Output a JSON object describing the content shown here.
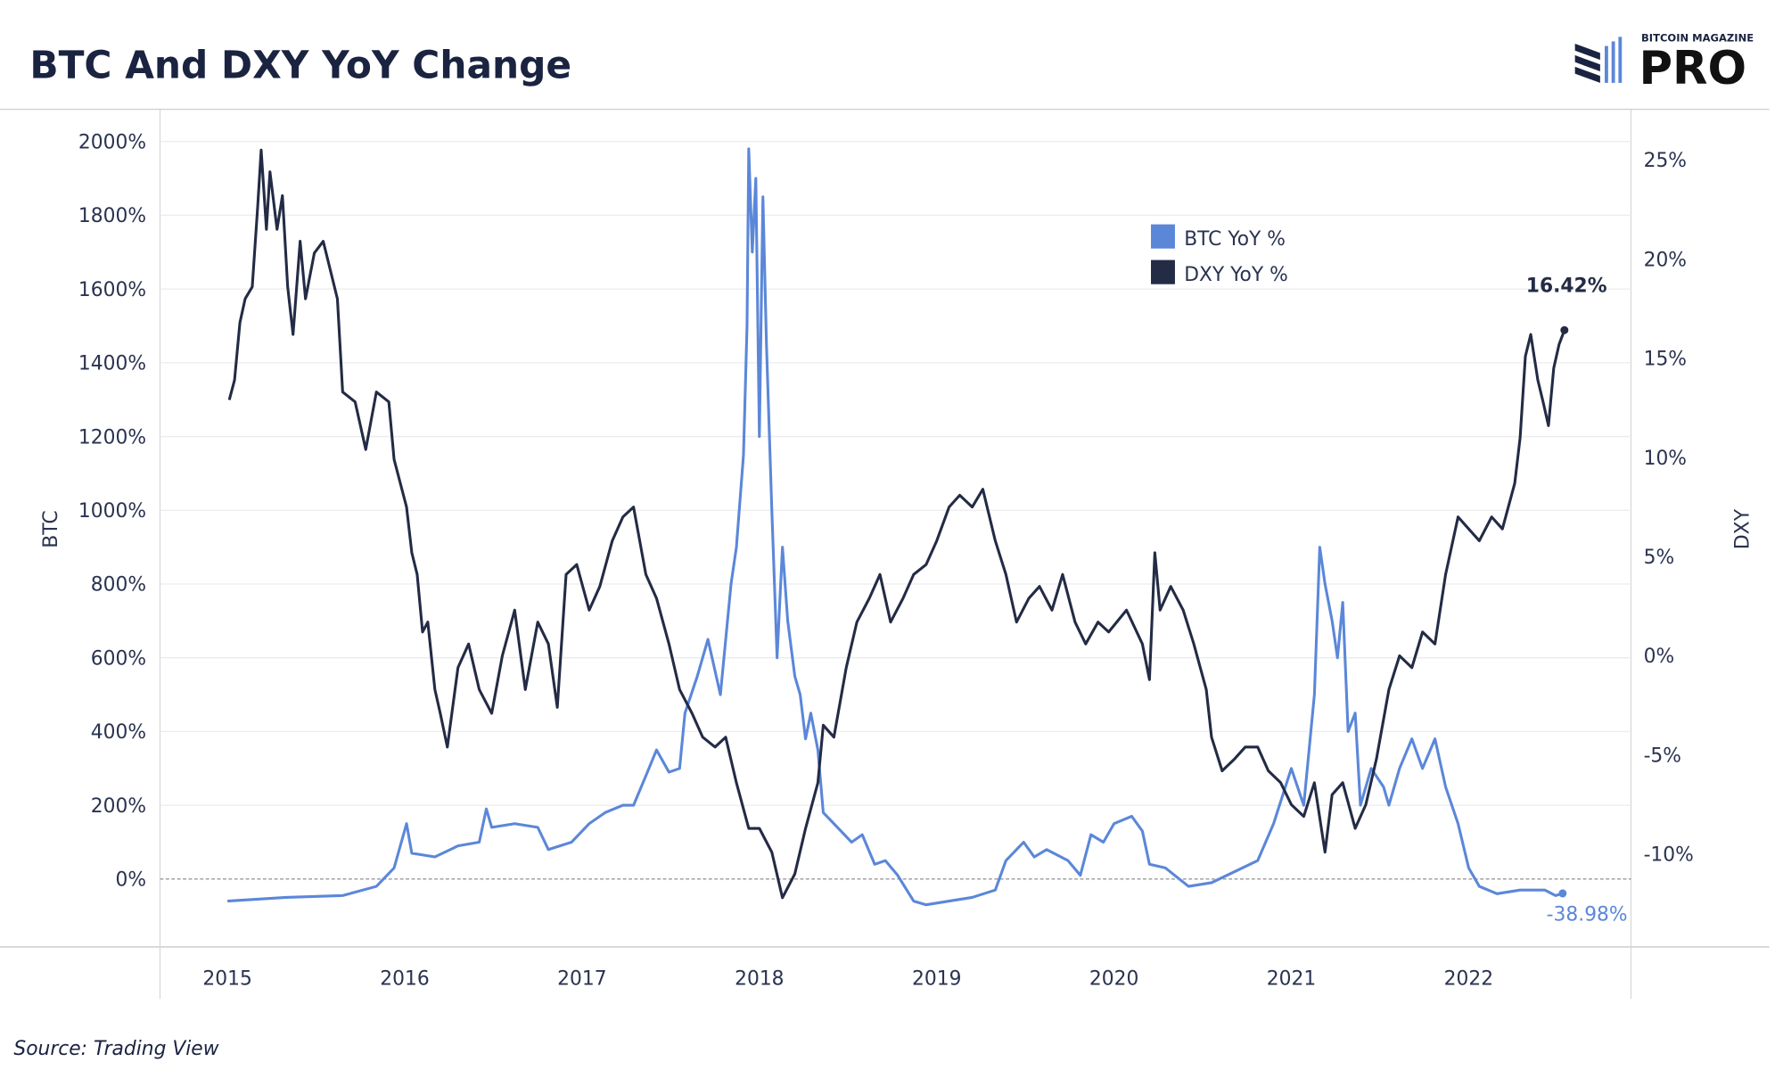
{
  "title": "BTC And DXY YoY Change",
  "source": "Source: Trading View",
  "logo": {
    "top": "BITCOIN MAGAZINE",
    "main": "PRO"
  },
  "colors": {
    "btc": "#5b87d9",
    "dxy": "#232b45",
    "grid": "#ececec",
    "text": "#1a2340"
  },
  "chart_data": {
    "type": "line",
    "title": "BTC And DXY YoY Change",
    "xlabel": "",
    "ylabel_left": "BTC",
    "ylabel_right": "DXY",
    "xlim": [
      2014.62,
      2022.91
    ],
    "ylim_left": [
      -190,
      2100
    ],
    "ylim_right": [
      -14.6,
      25
    ],
    "x_ticks": [
      2015,
      2016,
      2017,
      2018,
      2019,
      2020,
      2021,
      2022
    ],
    "x_tick_labels": [
      "2015",
      "2016",
      "2017",
      "2018",
      "2019",
      "2020",
      "2021",
      "2022"
    ],
    "left_ticks": [
      0,
      200,
      400,
      600,
      800,
      1000,
      1200,
      1400,
      1600,
      1800,
      2000
    ],
    "left_tick_labels": [
      "0%",
      "200%",
      "400%",
      "600%",
      "800%",
      "1000%",
      "1200%",
      "1400%",
      "1600%",
      "1800%",
      "2000%"
    ],
    "right_ticks": [
      -10,
      -5,
      0,
      5,
      10,
      15,
      20,
      25
    ],
    "right_tick_labels": [
      "-10%",
      "-5%",
      "0%",
      "5%",
      "10%",
      "15%",
      "20%",
      "25%"
    ],
    "grid": true,
    "legend_position": "top-right",
    "series": [
      {
        "name": "BTC YoY %",
        "axis": "left",
        "end_label": "-38.98%",
        "points": [
          [
            2015.0,
            -60
          ],
          [
            2015.33,
            -50
          ],
          [
            2015.65,
            -45
          ],
          [
            2015.84,
            -20
          ],
          [
            2015.94,
            30
          ],
          [
            2016.01,
            150
          ],
          [
            2016.04,
            70
          ],
          [
            2016.17,
            60
          ],
          [
            2016.3,
            90
          ],
          [
            2016.42,
            100
          ],
          [
            2016.46,
            190
          ],
          [
            2016.49,
            140
          ],
          [
            2016.62,
            150
          ],
          [
            2016.75,
            140
          ],
          [
            2016.81,
            80
          ],
          [
            2016.94,
            100
          ],
          [
            2017.04,
            150
          ],
          [
            2017.13,
            180
          ],
          [
            2017.23,
            200
          ],
          [
            2017.29,
            200
          ],
          [
            2017.36,
            280
          ],
          [
            2017.42,
            350
          ],
          [
            2017.49,
            290
          ],
          [
            2017.55,
            300
          ],
          [
            2017.58,
            450
          ],
          [
            2017.65,
            550
          ],
          [
            2017.71,
            650
          ],
          [
            2017.78,
            500
          ],
          [
            2017.84,
            800
          ],
          [
            2017.87,
            900
          ],
          [
            2017.91,
            1150
          ],
          [
            2017.93,
            1500
          ],
          [
            2017.94,
            1980
          ],
          [
            2017.96,
            1700
          ],
          [
            2017.98,
            1900
          ],
          [
            2018.0,
            1200
          ],
          [
            2018.02,
            1850
          ],
          [
            2018.04,
            1450
          ],
          [
            2018.07,
            1000
          ],
          [
            2018.1,
            600
          ],
          [
            2018.13,
            900
          ],
          [
            2018.16,
            700
          ],
          [
            2018.2,
            550
          ],
          [
            2018.23,
            500
          ],
          [
            2018.26,
            380
          ],
          [
            2018.29,
            450
          ],
          [
            2018.33,
            350
          ],
          [
            2018.36,
            180
          ],
          [
            2018.42,
            150
          ],
          [
            2018.52,
            100
          ],
          [
            2018.58,
            120
          ],
          [
            2018.65,
            40
          ],
          [
            2018.71,
            50
          ],
          [
            2018.78,
            10
          ],
          [
            2018.87,
            -60
          ],
          [
            2018.94,
            -70
          ],
          [
            2019.07,
            -60
          ],
          [
            2019.2,
            -50
          ],
          [
            2019.33,
            -30
          ],
          [
            2019.39,
            50
          ],
          [
            2019.49,
            100
          ],
          [
            2019.55,
            60
          ],
          [
            2019.62,
            80
          ],
          [
            2019.74,
            50
          ],
          [
            2019.81,
            10
          ],
          [
            2019.87,
            120
          ],
          [
            2019.94,
            100
          ],
          [
            2020.0,
            150
          ],
          [
            2020.1,
            170
          ],
          [
            2020.16,
            130
          ],
          [
            2020.2,
            40
          ],
          [
            2020.29,
            30
          ],
          [
            2020.42,
            -20
          ],
          [
            2020.55,
            -10
          ],
          [
            2020.68,
            20
          ],
          [
            2020.81,
            50
          ],
          [
            2020.9,
            150
          ],
          [
            2021.0,
            300
          ],
          [
            2021.07,
            200
          ],
          [
            2021.13,
            500
          ],
          [
            2021.16,
            900
          ],
          [
            2021.19,
            800
          ],
          [
            2021.23,
            700
          ],
          [
            2021.26,
            600
          ],
          [
            2021.29,
            750
          ],
          [
            2021.32,
            400
          ],
          [
            2021.36,
            450
          ],
          [
            2021.39,
            200
          ],
          [
            2021.45,
            300
          ],
          [
            2021.52,
            250
          ],
          [
            2021.55,
            200
          ],
          [
            2021.61,
            300
          ],
          [
            2021.68,
            380
          ],
          [
            2021.74,
            300
          ],
          [
            2021.81,
            380
          ],
          [
            2021.87,
            250
          ],
          [
            2021.94,
            150
          ],
          [
            2022.0,
            30
          ],
          [
            2022.06,
            -20
          ],
          [
            2022.16,
            -40
          ],
          [
            2022.29,
            -30
          ],
          [
            2022.43,
            -30
          ],
          [
            2022.49,
            -45
          ],
          [
            2022.53,
            -39
          ]
        ]
      },
      {
        "name": "DXY YoY %",
        "axis": "right",
        "end_label": "16.42%",
        "points": [
          [
            2015.01,
            12.9
          ],
          [
            2015.04,
            13.9
          ],
          [
            2015.07,
            16.8
          ],
          [
            2015.1,
            18
          ],
          [
            2015.14,
            18.6
          ],
          [
            2015.17,
            22.6
          ],
          [
            2015.19,
            25.5
          ],
          [
            2015.22,
            21.5
          ],
          [
            2015.24,
            24.4
          ],
          [
            2015.28,
            21.5
          ],
          [
            2015.31,
            23.2
          ],
          [
            2015.34,
            18.6
          ],
          [
            2015.37,
            16.2
          ],
          [
            2015.41,
            20.9
          ],
          [
            2015.44,
            18
          ],
          [
            2015.49,
            20.3
          ],
          [
            2015.54,
            20.9
          ],
          [
            2015.59,
            19.1
          ],
          [
            2015.62,
            18
          ],
          [
            2015.65,
            13.3
          ],
          [
            2015.72,
            12.8
          ],
          [
            2015.78,
            10.4
          ],
          [
            2015.84,
            13.3
          ],
          [
            2015.91,
            12.8
          ],
          [
            2015.94,
            9.9
          ],
          [
            2016.01,
            7.5
          ],
          [
            2016.04,
            5.2
          ],
          [
            2016.07,
            4.1
          ],
          [
            2016.1,
            1.2
          ],
          [
            2016.13,
            1.7
          ],
          [
            2016.17,
            -1.7
          ],
          [
            2016.2,
            -2.9
          ],
          [
            2016.24,
            -4.6
          ],
          [
            2016.3,
            -0.6
          ],
          [
            2016.36,
            0.6
          ],
          [
            2016.42,
            -1.7
          ],
          [
            2016.49,
            -2.9
          ],
          [
            2016.55,
            0
          ],
          [
            2016.62,
            2.3
          ],
          [
            2016.68,
            -1.7
          ],
          [
            2016.75,
            1.7
          ],
          [
            2016.81,
            0.6
          ],
          [
            2016.86,
            -2.6
          ],
          [
            2016.91,
            4.1
          ],
          [
            2016.97,
            4.6
          ],
          [
            2017.04,
            2.3
          ],
          [
            2017.1,
            3.5
          ],
          [
            2017.17,
            5.8
          ],
          [
            2017.23,
            7
          ],
          [
            2017.29,
            7.5
          ],
          [
            2017.36,
            4.1
          ],
          [
            2017.42,
            2.9
          ],
          [
            2017.49,
            0.6
          ],
          [
            2017.55,
            -1.7
          ],
          [
            2017.62,
            -2.9
          ],
          [
            2017.68,
            -4.1
          ],
          [
            2017.75,
            -4.6
          ],
          [
            2017.81,
            -4.1
          ],
          [
            2017.87,
            -6.4
          ],
          [
            2017.94,
            -8.7
          ],
          [
            2018.0,
            -8.7
          ],
          [
            2018.07,
            -9.9
          ],
          [
            2018.13,
            -12.2
          ],
          [
            2018.2,
            -11
          ],
          [
            2018.26,
            -8.7
          ],
          [
            2018.33,
            -6.4
          ],
          [
            2018.36,
            -3.5
          ],
          [
            2018.42,
            -4.1
          ],
          [
            2018.49,
            -0.6
          ],
          [
            2018.55,
            1.7
          ],
          [
            2018.62,
            2.9
          ],
          [
            2018.68,
            4.1
          ],
          [
            2018.74,
            1.7
          ],
          [
            2018.81,
            2.9
          ],
          [
            2018.87,
            4.1
          ],
          [
            2018.94,
            4.6
          ],
          [
            2019.0,
            5.8
          ],
          [
            2019.07,
            7.5
          ],
          [
            2019.13,
            8.1
          ],
          [
            2019.2,
            7.5
          ],
          [
            2019.26,
            8.4
          ],
          [
            2019.33,
            5.8
          ],
          [
            2019.39,
            4.1
          ],
          [
            2019.45,
            1.7
          ],
          [
            2019.52,
            2.9
          ],
          [
            2019.58,
            3.5
          ],
          [
            2019.65,
            2.3
          ],
          [
            2019.71,
            4.1
          ],
          [
            2019.78,
            1.7
          ],
          [
            2019.84,
            0.6
          ],
          [
            2019.91,
            1.7
          ],
          [
            2019.97,
            1.2
          ],
          [
            2020.07,
            2.3
          ],
          [
            2020.16,
            0.6
          ],
          [
            2020.2,
            -1.2
          ],
          [
            2020.23,
            5.2
          ],
          [
            2020.26,
            2.3
          ],
          [
            2020.32,
            3.5
          ],
          [
            2020.39,
            2.3
          ],
          [
            2020.45,
            0.6
          ],
          [
            2020.52,
            -1.7
          ],
          [
            2020.55,
            -4.1
          ],
          [
            2020.61,
            -5.8
          ],
          [
            2020.68,
            -5.2
          ],
          [
            2020.74,
            -4.6
          ],
          [
            2020.81,
            -4.6
          ],
          [
            2020.87,
            -5.8
          ],
          [
            2020.94,
            -6.4
          ],
          [
            2021.0,
            -7.5
          ],
          [
            2021.07,
            -8.1
          ],
          [
            2021.13,
            -6.4
          ],
          [
            2021.19,
            -9.9
          ],
          [
            2021.23,
            -7
          ],
          [
            2021.29,
            -6.4
          ],
          [
            2021.36,
            -8.7
          ],
          [
            2021.42,
            -7.5
          ],
          [
            2021.48,
            -5.2
          ],
          [
            2021.55,
            -1.7
          ],
          [
            2021.61,
            0
          ],
          [
            2021.68,
            -0.6
          ],
          [
            2021.74,
            1.2
          ],
          [
            2021.81,
            0.6
          ],
          [
            2021.87,
            4.1
          ],
          [
            2021.94,
            7
          ],
          [
            2022.0,
            6.4
          ],
          [
            2022.06,
            5.8
          ],
          [
            2022.13,
            7
          ],
          [
            2022.19,
            6.4
          ],
          [
            2022.26,
            8.7
          ],
          [
            2022.29,
            11
          ],
          [
            2022.32,
            15.1
          ],
          [
            2022.35,
            16.2
          ],
          [
            2022.39,
            13.9
          ],
          [
            2022.42,
            12.8
          ],
          [
            2022.45,
            11.6
          ],
          [
            2022.48,
            14.5
          ],
          [
            2022.51,
            15.7
          ],
          [
            2022.54,
            16.42
          ]
        ]
      }
    ]
  }
}
